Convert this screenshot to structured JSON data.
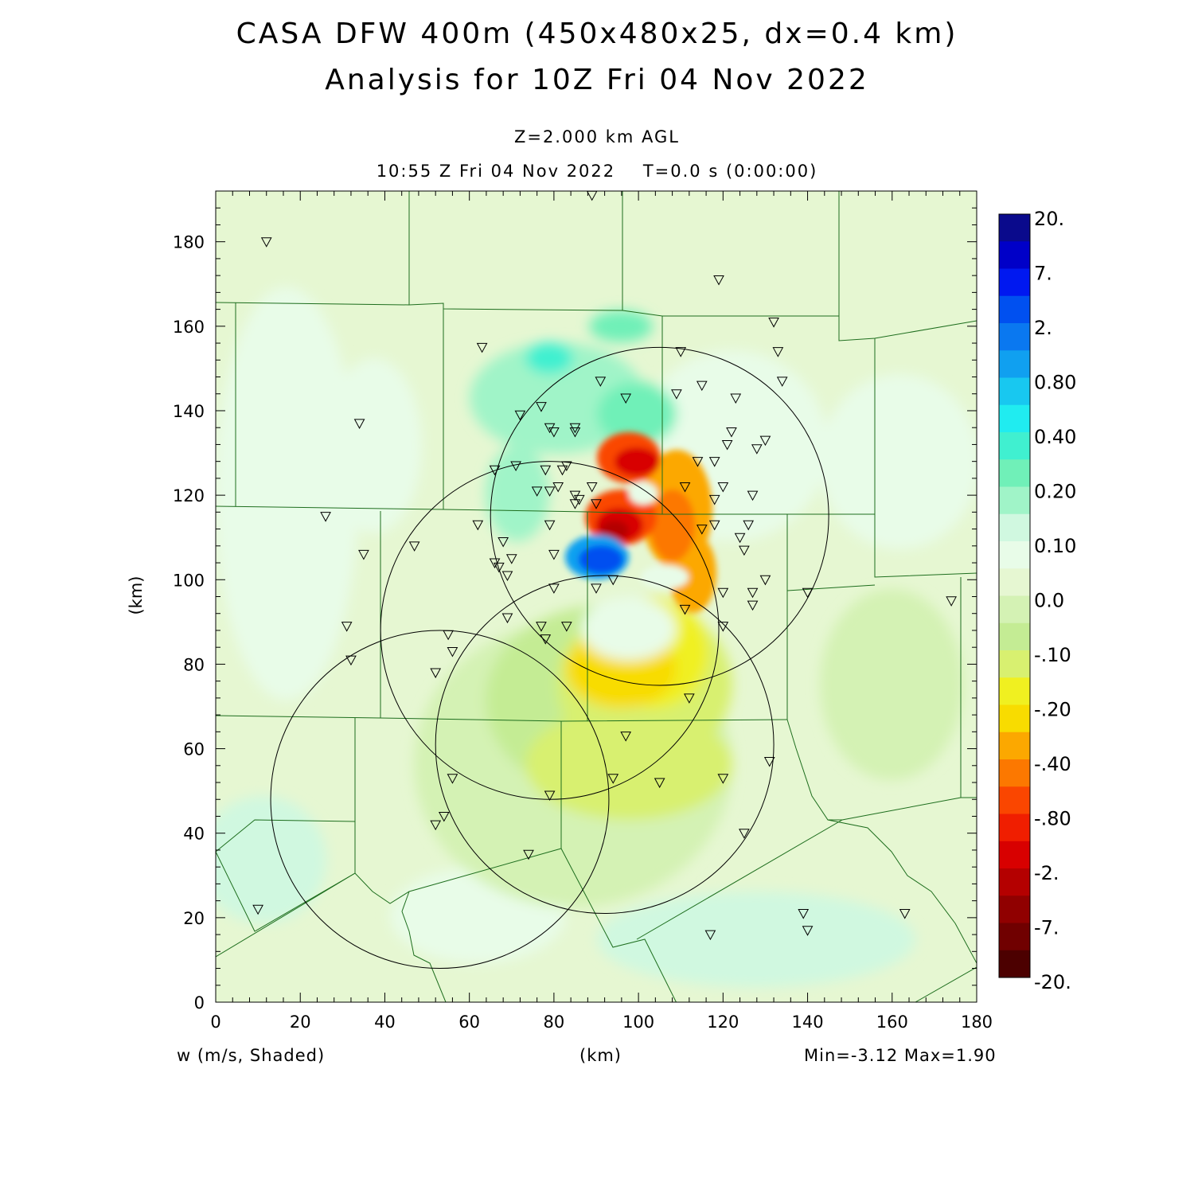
{
  "header": {
    "title_line1": "CASA DFW 400m (450x480x25, dx=0.4 km)",
    "title_line2": "Analysis for 10Z Fri 04 Nov 2022",
    "level": "Z=2.000 km AGL",
    "valid_time": "10:55 Z Fri 04 Nov 2022    T=0.0 s (0:00:00)"
  },
  "footer": {
    "field_label": "w (m/s, Shaded)",
    "x_unit": "(km)",
    "minmax": "Min=-3.12 Max=1.90"
  },
  "axes": {
    "ylabel": "(km)",
    "xlim": [
      0,
      180
    ],
    "ylim": [
      0,
      192
    ],
    "x_ticks": [
      "0",
      "20",
      "40",
      "60",
      "80",
      "100",
      "120",
      "140",
      "160",
      "180"
    ],
    "y_ticks": [
      "0",
      "20",
      "40",
      "60",
      "80",
      "100",
      "120",
      "140",
      "160",
      "180"
    ]
  },
  "colorbar": {
    "labels": [
      "20.",
      "7.",
      "2.",
      "0.80",
      "0.40",
      "0.20",
      "0.10",
      "0.0",
      "-.10",
      "-.20",
      "-.40",
      "-.80",
      "-2.",
      "-7.",
      "-20."
    ],
    "colors": [
      "#0a0a8c",
      "#0000c8",
      "#0018f0",
      "#0050f0",
      "#0a78f0",
      "#10a0f0",
      "#18c8f0",
      "#20ecf0",
      "#40f0d0",
      "#70f0b8",
      "#a0f4c8",
      "#d0f8e0",
      "#e8fce8",
      "#e6f7d2",
      "#d4f2b4",
      "#c4ec94",
      "#d8f070",
      "#f0f020",
      "#f8dc00",
      "#fca800",
      "#fc7800",
      "#fa4600",
      "#f01e00",
      "#d80000",
      "#b40000",
      "#900000",
      "#700000",
      "#4c0000"
    ]
  },
  "radar_rings": [
    {
      "cx_km": 105,
      "cy_km": 115,
      "r_km": 40
    },
    {
      "cx_km": 79,
      "cy_km": 88,
      "r_km": 40
    },
    {
      "cx_km": 92,
      "cy_km": 61,
      "r_km": 40
    },
    {
      "cx_km": 53,
      "cy_km": 48,
      "r_km": 40
    }
  ],
  "stations": [
    [
      12,
      180
    ],
    [
      89,
      191
    ],
    [
      119,
      171
    ],
    [
      132,
      161
    ],
    [
      63,
      155
    ],
    [
      133,
      154
    ],
    [
      110,
      154
    ],
    [
      134,
      147
    ],
    [
      115,
      146
    ],
    [
      91,
      147
    ],
    [
      109,
      144
    ],
    [
      97,
      143
    ],
    [
      123,
      143
    ],
    [
      77,
      141
    ],
    [
      72,
      139
    ],
    [
      34,
      137
    ],
    [
      79,
      136
    ],
    [
      85,
      136
    ],
    [
      80,
      135
    ],
    [
      85,
      135
    ],
    [
      122,
      135
    ],
    [
      130,
      133
    ],
    [
      121,
      132
    ],
    [
      128,
      131
    ],
    [
      114,
      128
    ],
    [
      118,
      128
    ],
    [
      71,
      127
    ],
    [
      66,
      126
    ],
    [
      78,
      126
    ],
    [
      82,
      126
    ],
    [
      83,
      127
    ],
    [
      89,
      122
    ],
    [
      76,
      121
    ],
    [
      79,
      121
    ],
    [
      81,
      122
    ],
    [
      111,
      122
    ],
    [
      120,
      122
    ],
    [
      118,
      119
    ],
    [
      127,
      120
    ],
    [
      85,
      120
    ],
    [
      86,
      119
    ],
    [
      85,
      118
    ],
    [
      90,
      118
    ],
    [
      26,
      115
    ],
    [
      126,
      113
    ],
    [
      62,
      113
    ],
    [
      79,
      113
    ],
    [
      118,
      113
    ],
    [
      115,
      112
    ],
    [
      124,
      110
    ],
    [
      68,
      109
    ],
    [
      47,
      108
    ],
    [
      125,
      107
    ],
    [
      35,
      106
    ],
    [
      70,
      105
    ],
    [
      80,
      106
    ],
    [
      66,
      104
    ],
    [
      67,
      103
    ],
    [
      69,
      101
    ],
    [
      94,
      100
    ],
    [
      130,
      100
    ],
    [
      90,
      98
    ],
    [
      80,
      98
    ],
    [
      120,
      97
    ],
    [
      127,
      97
    ],
    [
      140,
      97
    ],
    [
      127,
      94
    ],
    [
      174,
      95
    ],
    [
      111,
      93
    ],
    [
      69,
      91
    ],
    [
      31,
      89
    ],
    [
      83,
      89
    ],
    [
      77,
      89
    ],
    [
      78,
      86
    ],
    [
      120,
      89
    ],
    [
      55,
      87
    ],
    [
      56,
      83
    ],
    [
      32,
      81
    ],
    [
      52,
      78
    ],
    [
      112,
      72
    ],
    [
      97,
      63
    ],
    [
      131,
      57
    ],
    [
      56,
      53
    ],
    [
      94,
      53
    ],
    [
      120,
      53
    ],
    [
      105,
      52
    ],
    [
      79,
      49
    ],
    [
      54,
      44
    ],
    [
      52,
      42
    ],
    [
      125,
      40
    ],
    [
      74,
      35
    ],
    [
      10,
      22
    ],
    [
      139,
      21
    ],
    [
      163,
      21
    ],
    [
      140,
      17
    ],
    [
      117,
      16
    ]
  ]
}
